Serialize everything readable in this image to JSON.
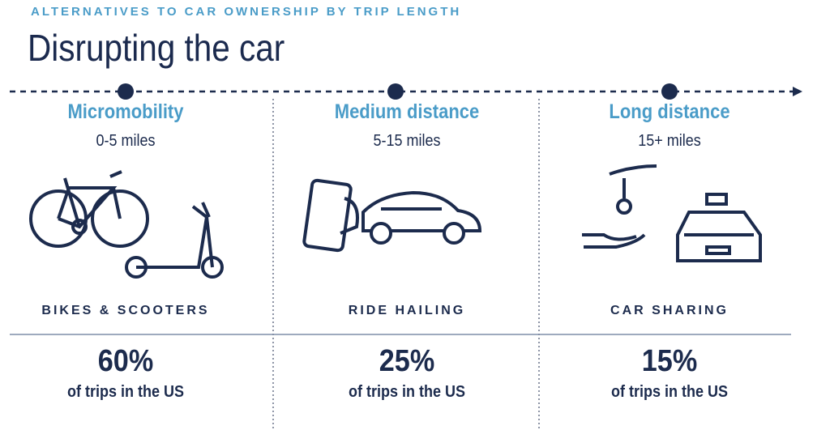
{
  "header": {
    "kicker": "ALTERNATIVES TO CAR OWNERSHIP BY TRIP LENGTH",
    "title": "Disrupting the car"
  },
  "columns": [
    {
      "heading": "Micromobility",
      "range": "0-5 miles",
      "label": "BIKES & SCOOTERS",
      "share": "60%",
      "share_text": "of trips in the US"
    },
    {
      "heading": "Medium distance",
      "range": "5-15 miles",
      "label": "RIDE HAILING",
      "share": "25%",
      "share_text": "of trips in the US"
    },
    {
      "heading": "Long distance",
      "range": "15+ miles",
      "label": "CAR SHARING",
      "share": "15%",
      "share_text": "of trips in the US"
    }
  ]
}
